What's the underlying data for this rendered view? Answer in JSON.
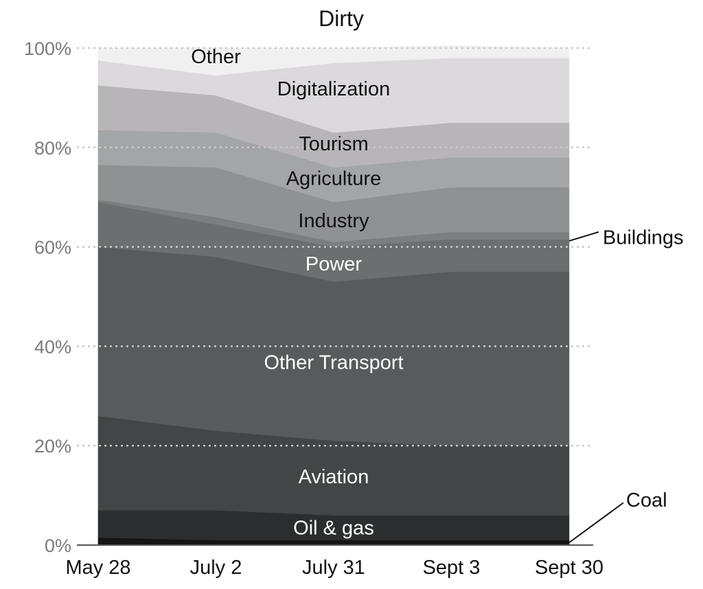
{
  "chart_data": {
    "type": "area",
    "stacked": true,
    "title": "Dirty",
    "xlabel": "",
    "ylabel": "",
    "categories": [
      "May 28",
      "July 2",
      "July 31",
      "Sept 3",
      "Sept 30"
    ],
    "ylim": [
      0,
      100
    ],
    "yticks": [
      "0%",
      "20%",
      "40%",
      "60%",
      "80%",
      "100%"
    ],
    "grid": true,
    "legend": "labels inside bands",
    "series": [
      {
        "name": "Coal",
        "values": [
          1.5,
          1,
          1,
          1,
          1
        ],
        "color": "#151515"
      },
      {
        "name": "Oil & gas",
        "values": [
          5.5,
          6,
          5,
          5,
          5
        ],
        "color": "#2c2d2e"
      },
      {
        "name": "Aviation",
        "values": [
          19,
          16,
          15,
          14,
          14
        ],
        "color": "#434546"
      },
      {
        "name": "Other Transport",
        "values": [
          34,
          35,
          32,
          35,
          35
        ],
        "color": "#585b5c"
      },
      {
        "name": "Power",
        "values": [
          9,
          6.5,
          7,
          6.5,
          6.5
        ],
        "color": "#6c6e70"
      },
      {
        "name": "Buildings",
        "values": [
          0.5,
          1.5,
          1,
          1.5,
          1.5
        ],
        "color": "#7c7e80"
      },
      {
        "name": "Industry",
        "values": [
          7,
          10,
          8,
          9,
          9
        ],
        "color": "#8f9193"
      },
      {
        "name": "Agriculture",
        "values": [
          7,
          7,
          7,
          6,
          6
        ],
        "color": "#a4a5a7"
      },
      {
        "name": "Tourism",
        "values": [
          9,
          7.5,
          7,
          7,
          7
        ],
        "color": "#b7b5b7"
      },
      {
        "name": "Digitalization",
        "values": [
          5,
          4,
          14,
          13,
          13
        ],
        "color": "#dbd9db"
      },
      {
        "name": "Other",
        "values": [
          2.5,
          5.5,
          3,
          2.5,
          2
        ],
        "color": "#f0f0f0"
      }
    ],
    "inner_labels": [
      {
        "name": "Other",
        "x": "July 2",
        "y": 98,
        "color": "#111111"
      },
      {
        "name": "Digitalization",
        "x": "July 31",
        "y": 91.5,
        "color": "#111111"
      },
      {
        "name": "Tourism",
        "x": "July 31",
        "y": 80.5,
        "color": "#111111"
      },
      {
        "name": "Agriculture",
        "x": "July 31",
        "y": 73.5,
        "color": "#111111"
      },
      {
        "name": "Industry",
        "x": "July 31",
        "y": 65,
        "color": "#111111"
      },
      {
        "name": "Power",
        "x": "July 31",
        "y": 56.3,
        "color": "#ffffff"
      },
      {
        "name": "Other Transport",
        "x": "July 31",
        "y": 36.5,
        "color": "#ffffff"
      },
      {
        "name": "Aviation",
        "x": "July 31",
        "y": 13.5,
        "color": "#ffffff"
      },
      {
        "name": "Oil & gas",
        "x": "July 31",
        "y": 3.2,
        "color": "#ffffff"
      }
    ],
    "callouts": [
      {
        "name": "Buildings",
        "x": "Sept 30",
        "y": 61.2
      },
      {
        "name": "Coal",
        "x": "Sept 30",
        "y": 0.5
      }
    ]
  }
}
